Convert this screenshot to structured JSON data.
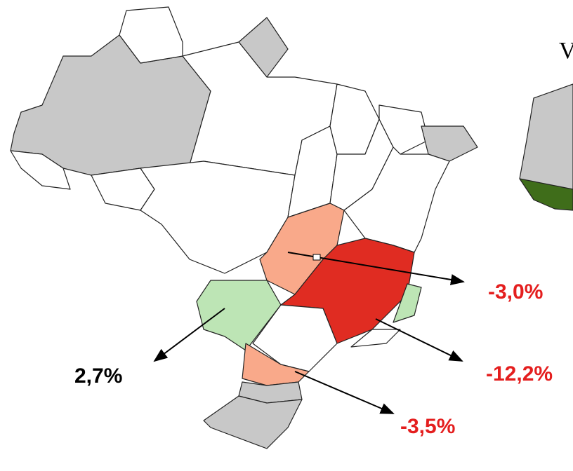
{
  "map": {
    "partial_title": "V",
    "labels": [
      {
        "text": "-3,0%"
      },
      {
        "text": "-12,2%"
      },
      {
        "text": "-3,5%"
      },
      {
        "text": "2,7%"
      }
    ]
  }
}
